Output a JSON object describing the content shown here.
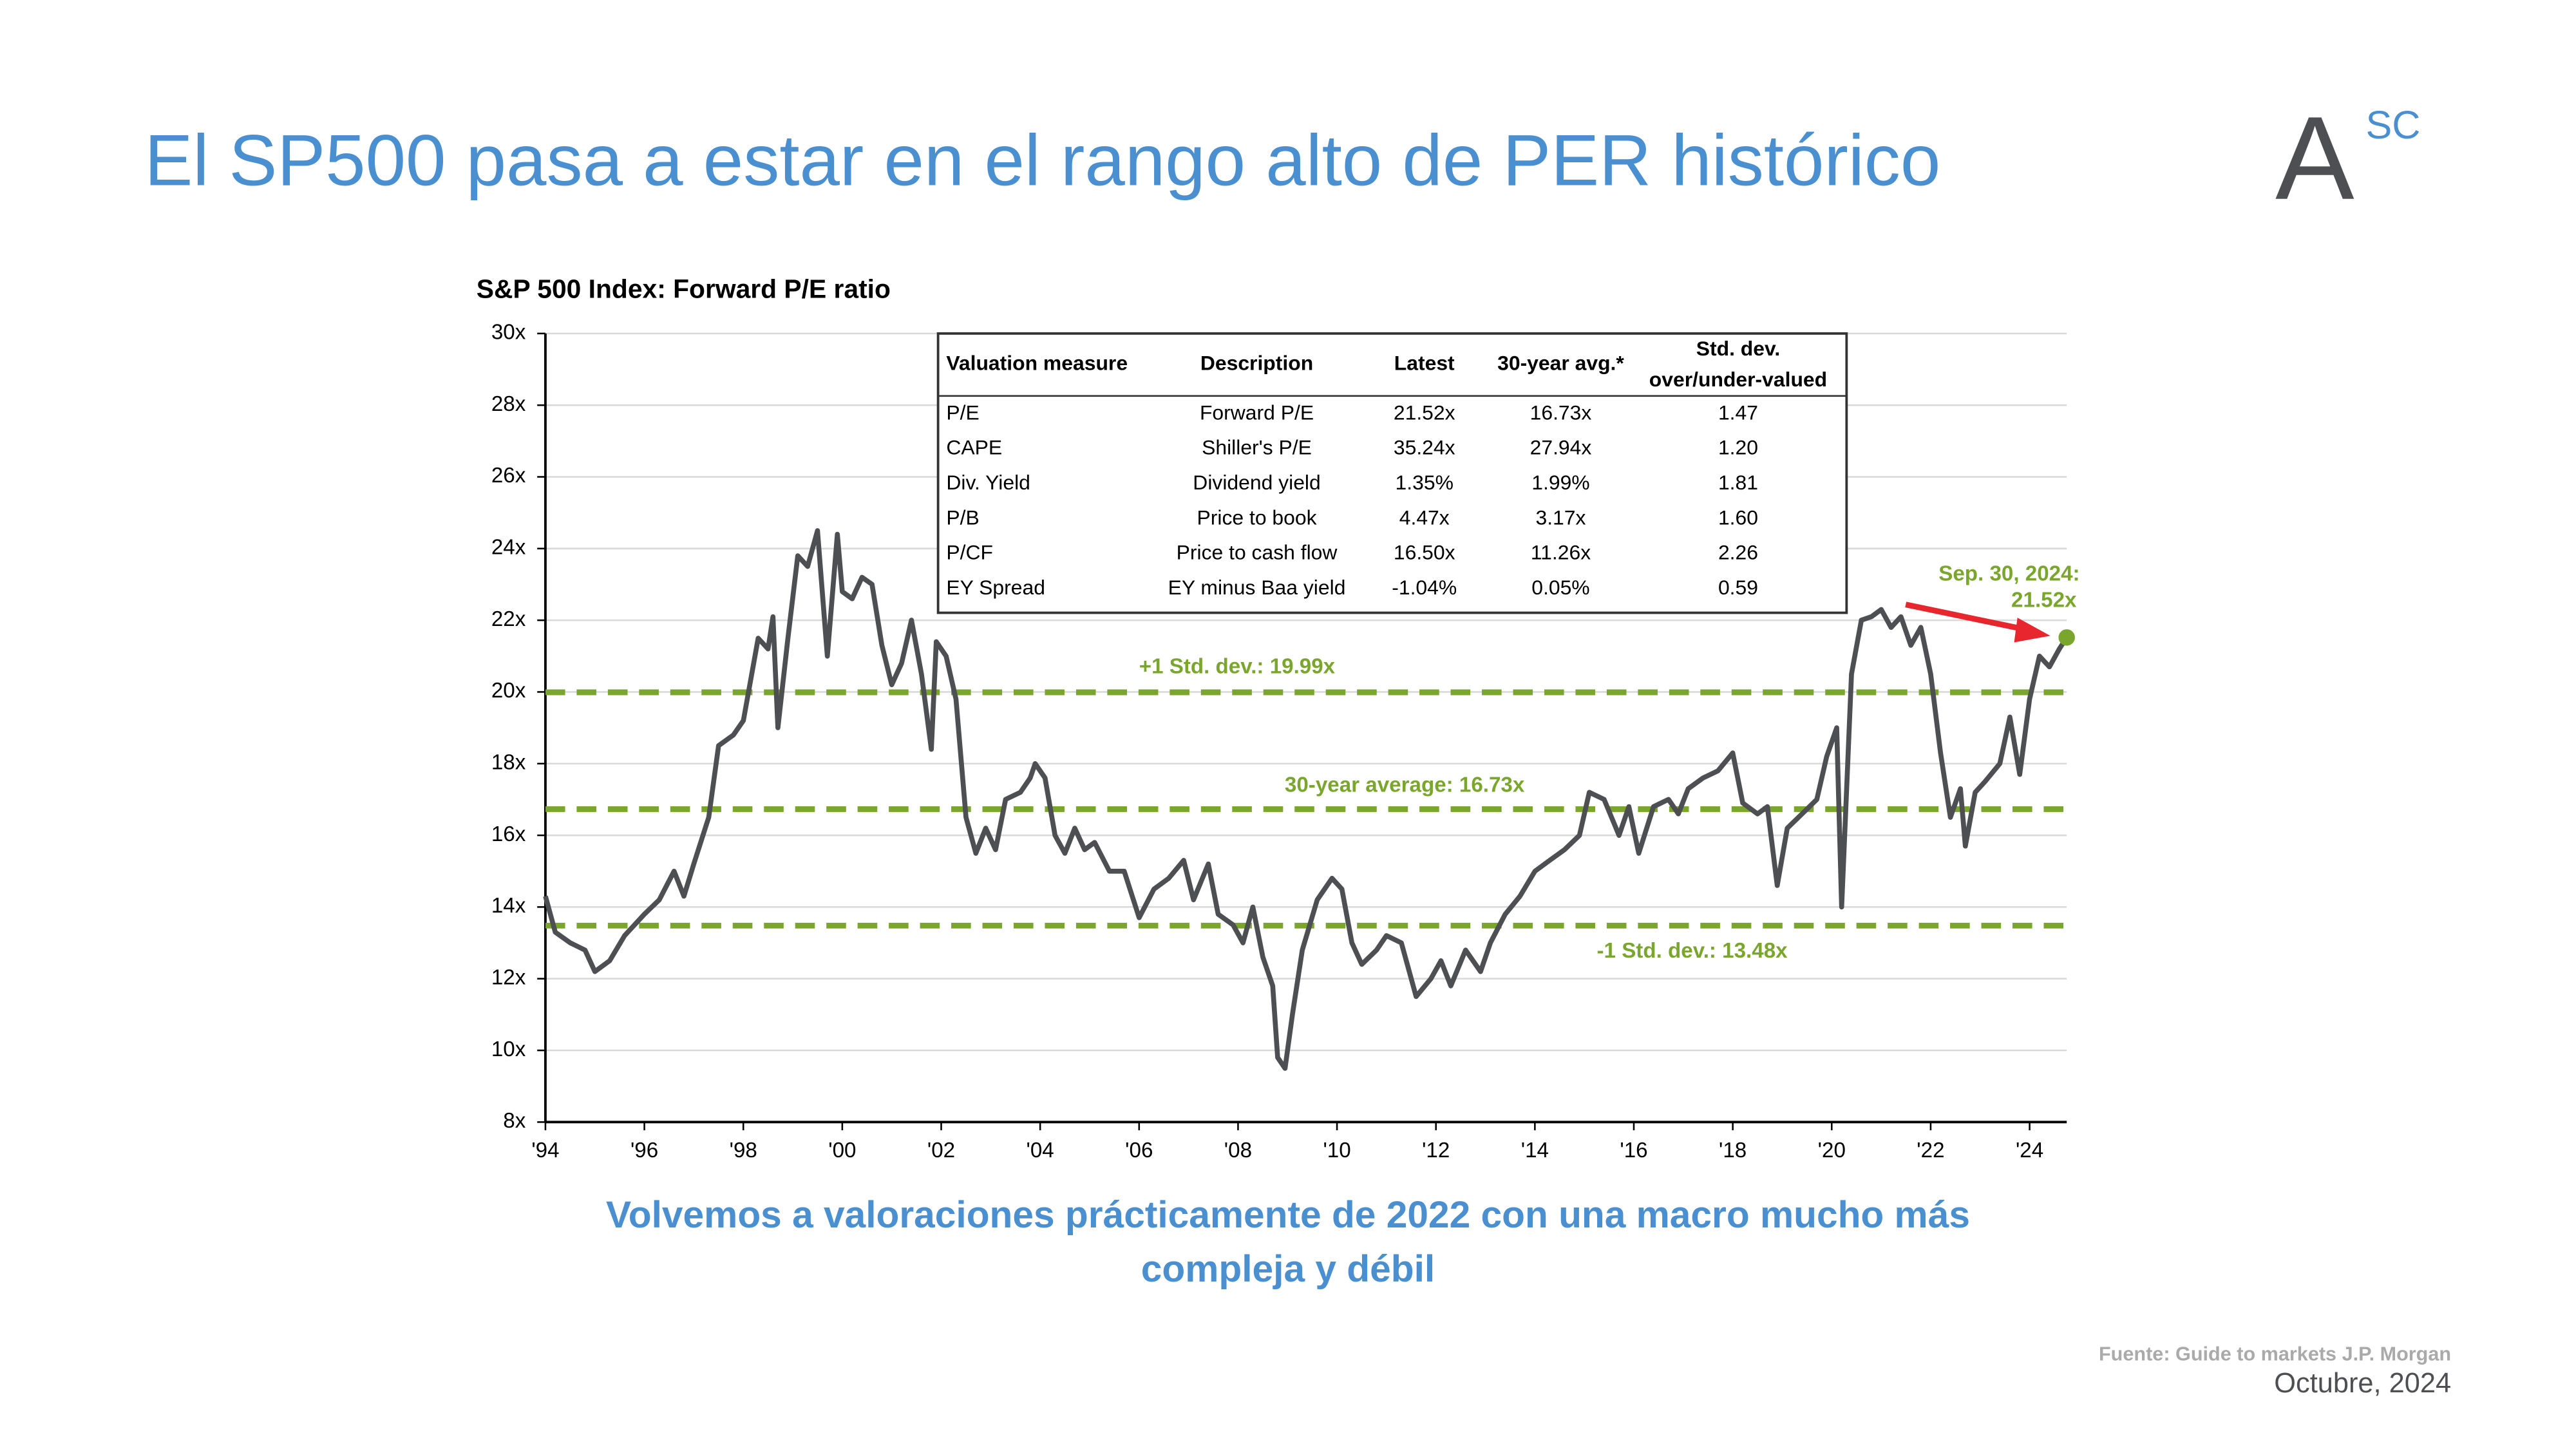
{
  "header": {
    "title": "El SP500 pasa a estar en el rango alto de PER histórico",
    "logo": "A",
    "logo_sup": "SC"
  },
  "chart_data": {
    "type": "line",
    "title": "S&P 500 Index: Forward P/E ratio",
    "x": [
      1994.0,
      1994.2,
      1994.5,
      1994.8,
      1995.0,
      1995.3,
      1995.6,
      1996.0,
      1996.3,
      1996.6,
      1996.8,
      1997.0,
      1997.3,
      1997.5,
      1997.8,
      1998.0,
      1998.3,
      1998.5,
      1998.6,
      1998.7,
      1998.9,
      1999.1,
      1999.3,
      1999.5,
      1999.7,
      1999.9,
      2000.0,
      2000.2,
      2000.4,
      2000.6,
      2000.8,
      2001.0,
      2001.2,
      2001.4,
      2001.6,
      2001.8,
      2001.9,
      2002.1,
      2002.3,
      2002.5,
      2002.7,
      2002.9,
      2003.1,
      2003.3,
      2003.6,
      2003.8,
      2003.9,
      2004.1,
      2004.3,
      2004.5,
      2004.7,
      2004.9,
      2005.1,
      2005.4,
      2005.7,
      2006.0,
      2006.3,
      2006.6,
      2006.9,
      2007.1,
      2007.4,
      2007.6,
      2007.9,
      2008.1,
      2008.3,
      2008.5,
      2008.7,
      2008.8,
      2008.95,
      2009.1,
      2009.3,
      2009.6,
      2009.9,
      2010.1,
      2010.3,
      2010.5,
      2010.8,
      2011.0,
      2011.3,
      2011.6,
      2011.9,
      2012.1,
      2012.3,
      2012.6,
      2012.9,
      2013.1,
      2013.4,
      2013.7,
      2014.0,
      2014.3,
      2014.6,
      2014.9,
      2015.1,
      2015.4,
      2015.7,
      2015.9,
      2016.1,
      2016.4,
      2016.7,
      2016.9,
      2017.1,
      2017.4,
      2017.7,
      2018.0,
      2018.2,
      2018.5,
      2018.7,
      2018.9,
      2019.1,
      2019.4,
      2019.7,
      2019.9,
      2020.1,
      2020.2,
      2020.4,
      2020.6,
      2020.8,
      2021.0,
      2021.2,
      2021.4,
      2021.6,
      2021.8,
      2022.0,
      2022.2,
      2022.4,
      2022.6,
      2022.7,
      2022.9,
      2023.1,
      2023.4,
      2023.6,
      2023.8,
      2024.0,
      2024.2,
      2024.4,
      2024.6,
      2024.75
    ],
    "series": [
      {
        "color": "#4d4f53",
        "values": [
          14.3,
          13.3,
          13.0,
          12.8,
          12.2,
          12.5,
          13.2,
          13.8,
          14.2,
          15.0,
          14.3,
          15.2,
          16.5,
          18.5,
          18.8,
          19.2,
          21.5,
          21.2,
          22.1,
          19.0,
          21.5,
          23.8,
          23.5,
          24.5,
          21.0,
          24.4,
          22.8,
          22.6,
          23.2,
          23.0,
          21.3,
          20.2,
          20.8,
          22.0,
          20.5,
          18.4,
          21.4,
          21.0,
          19.8,
          16.5,
          15.5,
          16.2,
          15.6,
          17.0,
          17.2,
          17.6,
          18.0,
          17.6,
          16.0,
          15.5,
          16.2,
          15.6,
          15.8,
          15.0,
          15.0,
          13.7,
          14.5,
          14.8,
          15.3,
          14.2,
          15.2,
          13.8,
          13.5,
          13.0,
          14.0,
          12.6,
          11.8,
          9.8,
          9.5,
          11.0,
          12.8,
          14.2,
          14.8,
          14.5,
          13.0,
          12.4,
          12.8,
          13.2,
          13.0,
          11.5,
          12.0,
          12.5,
          11.8,
          12.8,
          12.2,
          13.0,
          13.8,
          14.3,
          15.0,
          15.3,
          15.6,
          16.0,
          17.2,
          17.0,
          16.0,
          16.8,
          15.5,
          16.8,
          17.0,
          16.6,
          17.3,
          17.6,
          17.8,
          18.3,
          16.9,
          16.6,
          16.8,
          14.6,
          16.2,
          16.6,
          17.0,
          18.2,
          19.0,
          14.0,
          20.5,
          22.0,
          22.1,
          22.3,
          21.8,
          22.1,
          21.3,
          21.8,
          20.5,
          18.3,
          16.5,
          17.3,
          15.7,
          17.2,
          17.5,
          18.0,
          19.3,
          17.7,
          19.8,
          21.0,
          20.7,
          21.2,
          21.52
        ]
      }
    ],
    "xlim": [
      1994,
      2024.75
    ],
    "ylim": [
      8,
      30
    ],
    "xticks": [
      {
        "value": 1994,
        "label": "'94"
      },
      {
        "value": 1996,
        "label": "'96"
      },
      {
        "value": 1998,
        "label": "'98"
      },
      {
        "value": 2000,
        "label": "'00"
      },
      {
        "value": 2002,
        "label": "'02"
      },
      {
        "value": 2004,
        "label": "'04"
      },
      {
        "value": 2006,
        "label": "'06"
      },
      {
        "value": 2008,
        "label": "'08"
      },
      {
        "value": 2010,
        "label": "'10"
      },
      {
        "value": 2012,
        "label": "'12"
      },
      {
        "value": 2014,
        "label": "'14"
      },
      {
        "value": 2016,
        "label": "'16"
      },
      {
        "value": 2018,
        "label": "'18"
      },
      {
        "value": 2020,
        "label": "'20"
      },
      {
        "value": 2022,
        "label": "'22"
      },
      {
        "value": 2024,
        "label": "'24"
      }
    ],
    "yticks": [
      {
        "value": 8,
        "label": "8x"
      },
      {
        "value": 10,
        "label": "10x"
      },
      {
        "value": 12,
        "label": "12x"
      },
      {
        "value": 14,
        "label": "14x"
      },
      {
        "value": 16,
        "label": "16x"
      },
      {
        "value": 18,
        "label": "18x"
      },
      {
        "value": 20,
        "label": "20x"
      },
      {
        "value": 22,
        "label": "22x"
      },
      {
        "value": 24,
        "label": "24x"
      },
      {
        "value": 26,
        "label": "26x"
      },
      {
        "value": 28,
        "label": "28x"
      },
      {
        "value": 30,
        "label": "30x"
      }
    ],
    "grid": true,
    "reference_lines": [
      {
        "value": 19.99,
        "label": "+1 Std. dev.: 19.99x",
        "color": "#7ba62d"
      },
      {
        "value": 16.73,
        "label": "30-year average: 16.73x",
        "color": "#7ba62d"
      },
      {
        "value": 13.48,
        "label": "-1 Std. dev.: 13.48x",
        "color": "#7ba62d"
      }
    ],
    "annotation": [
      "Sep. 30, 2024:",
      "21.52x"
    ]
  },
  "table": {
    "headers": [
      "Valuation measure",
      "Description",
      "Latest",
      "30-year avg.*",
      [
        "Std. dev.",
        "over/under-valued"
      ]
    ],
    "rows": [
      [
        "P/E",
        "Forward P/E",
        "21.52x",
        "16.73x",
        "1.47"
      ],
      [
        "CAPE",
        "Shiller's P/E",
        "35.24x",
        "27.94x",
        "1.20"
      ],
      [
        "Div. Yield",
        "Dividend yield",
        "1.35%",
        "1.99%",
        "1.81"
      ],
      [
        "P/B",
        "Price to book",
        "4.47x",
        "3.17x",
        "1.60"
      ],
      [
        "P/CF",
        "Price to cash flow",
        "16.50x",
        "11.26x",
        "2.26"
      ],
      [
        "EY Spread",
        "EY minus Baa yield",
        "-1.04%",
        "0.05%",
        "0.59"
      ]
    ]
  },
  "footer": {
    "subtitle": [
      "Volvemos a valoraciones prácticamente de 2022 con una macro mucho más",
      "compleja y débil"
    ],
    "source": "Fuente: Guide to markets J.P. Morgan",
    "date": "Octubre, 2024"
  }
}
